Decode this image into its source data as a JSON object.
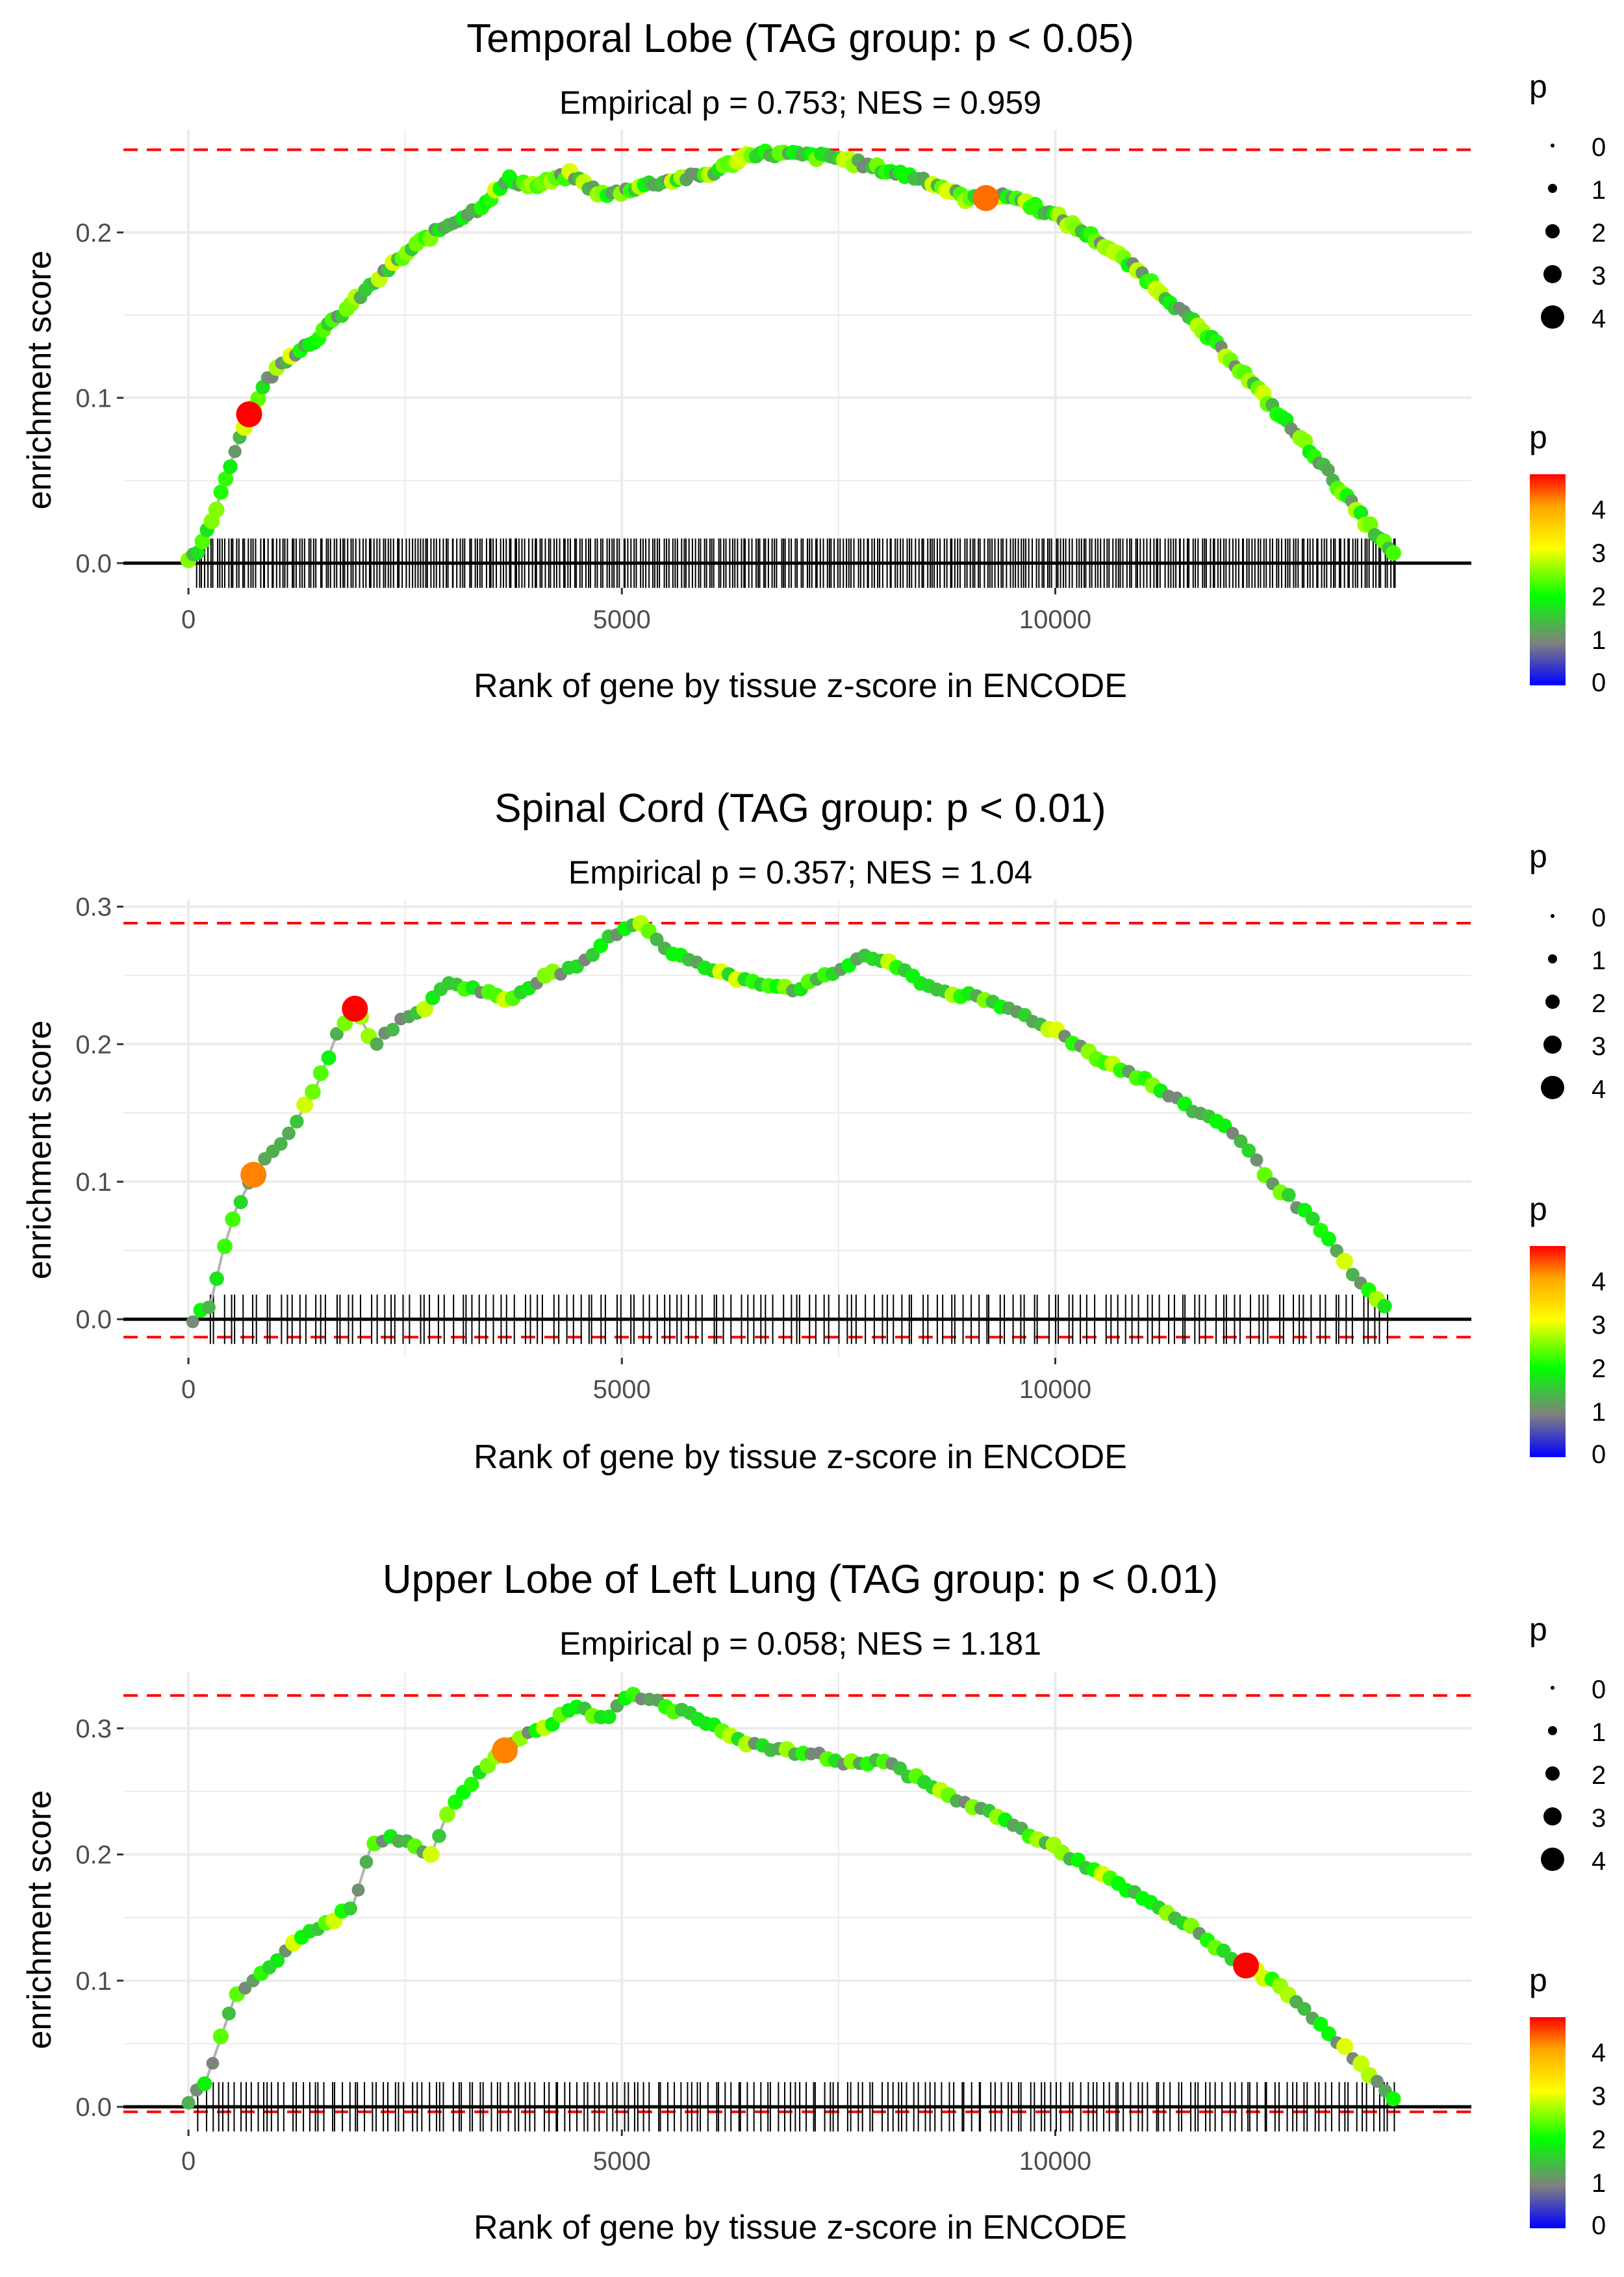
{
  "colors": {
    "grid": "#ebebeb",
    "threshold": "#ff0000",
    "baseline": "#000000",
    "path": "#b3b3b3",
    "gradient": [
      "#0000ff",
      "#808080",
      "#00ff00",
      "#ffff00",
      "#ff0000"
    ]
  },
  "chart_data": [
    {
      "type": "line",
      "title": "Temporal Lobe (TAG group: p < 0.05)",
      "subtitle": "Empirical p = 0.753; NES = 0.959",
      "xlabel": "Rank of gene by tissue z-score in ENCODE",
      "ylabel": "enrichment score",
      "xlim": [
        -750,
        14800
      ],
      "ylim": [
        -0.015,
        0.262
      ],
      "x_ticks": [
        0,
        5000,
        10000
      ],
      "x_tick_labels": [
        "0",
        "5000",
        "10000"
      ],
      "y_ticks": [
        0,
        0.1,
        0.2
      ],
      "y_tick_labels": [
        "0.0",
        "0.1",
        "0.2"
      ],
      "max_es": 0.25,
      "min_es": 0.0,
      "curve_x": [
        0,
        150,
        300,
        450,
        650,
        900,
        1150,
        1450,
        1750,
        2050,
        2350,
        2700,
        3000,
        3350,
        3700,
        4000,
        4400,
        4800,
        5200,
        5600,
        6000,
        6500,
        7000,
        7500,
        8000,
        8500,
        9000,
        9500,
        10000,
        10500,
        11000,
        11500,
        12000,
        12500,
        13000,
        13500,
        13900
      ],
      "curve_y": [
        0.0,
        0.01,
        0.03,
        0.055,
        0.085,
        0.11,
        0.125,
        0.135,
        0.15,
        0.165,
        0.18,
        0.195,
        0.205,
        0.215,
        0.232,
        0.228,
        0.235,
        0.222,
        0.228,
        0.232,
        0.235,
        0.248,
        0.247,
        0.245,
        0.238,
        0.232,
        0.22,
        0.222,
        0.21,
        0.195,
        0.175,
        0.15,
        0.125,
        0.095,
        0.065,
        0.03,
        0.005
      ],
      "legend_size_title": "p",
      "legend_size_labels": [
        "0",
        "1",
        "2",
        "3",
        "4"
      ],
      "legend_color_title": "p",
      "legend_color_labels": [
        "4",
        "3",
        "2",
        "1",
        "0"
      ],
      "gene_hits": {
        "start": 80,
        "end": 13950,
        "count": 420
      }
    },
    {
      "type": "line",
      "title": "Spinal Cord (TAG group: p < 0.01)",
      "subtitle": "Empirical p = 0.357; NES = 1.04",
      "xlabel": "Rank of gene by tissue z-score in ENCODE",
      "ylabel": "enrichment score",
      "xlim": [
        -750,
        14800
      ],
      "ylim": [
        -0.028,
        0.305
      ],
      "x_ticks": [
        0,
        5000,
        10000
      ],
      "x_tick_labels": [
        "0",
        "5000",
        "10000"
      ],
      "y_ticks": [
        0,
        0.1,
        0.2,
        0.3
      ],
      "y_tick_labels": [
        "0.0",
        "0.1",
        "0.2",
        "0.3"
      ],
      "max_es": 0.288,
      "min_es": -0.013,
      "curve_x": [
        50,
        250,
        400,
        550,
        750,
        950,
        1200,
        1450,
        1700,
        1900,
        2150,
        2400,
        2700,
        3000,
        3300,
        3700,
        4100,
        4500,
        4900,
        5200,
        5500,
        5800,
        6200,
        6600,
        7000,
        7400,
        7800,
        8200,
        8600,
        9000,
        9500,
        10000,
        10500,
        11000,
        11500,
        12000,
        12500,
        13000,
        13400,
        13800
      ],
      "curve_y": [
        0.0,
        0.01,
        0.05,
        0.08,
        0.105,
        0.12,
        0.14,
        0.165,
        0.205,
        0.228,
        0.2,
        0.215,
        0.225,
        0.245,
        0.24,
        0.232,
        0.25,
        0.255,
        0.28,
        0.29,
        0.27,
        0.26,
        0.25,
        0.245,
        0.24,
        0.25,
        0.265,
        0.255,
        0.24,
        0.235,
        0.225,
        0.21,
        0.19,
        0.175,
        0.155,
        0.14,
        0.1,
        0.07,
        0.035,
        0.008
      ],
      "legend_size_title": "p",
      "legend_size_labels": [
        "0",
        "1",
        "2",
        "3",
        "4"
      ],
      "legend_color_title": "p",
      "legend_color_labels": [
        "4",
        "3",
        "2",
        "1",
        "0"
      ],
      "gene_hits": {
        "start": 200,
        "end": 13900,
        "count": 170
      }
    },
    {
      "type": "line",
      "title": "Upper Lobe of Left Lung (TAG group: p < 0.01)",
      "subtitle": "Empirical p = 0.058; NES = 1.181",
      "xlabel": "Rank of gene by tissue z-score in ENCODE",
      "ylabel": "enrichment score",
      "xlim": [
        -750,
        14800
      ],
      "ylim": [
        -0.018,
        0.345
      ],
      "x_ticks": [
        0,
        5000,
        10000
      ],
      "x_tick_labels": [
        "0",
        "5000",
        "10000"
      ],
      "y_ticks": [
        0,
        0.1,
        0.2,
        0.3
      ],
      "y_tick_labels": [
        "0.0",
        "0.1",
        "0.2",
        "0.3"
      ],
      "max_es": 0.326,
      "min_es": -0.004,
      "curve_x": [
        0,
        200,
        400,
        550,
        750,
        1000,
        1300,
        1600,
        1900,
        2100,
        2300,
        2550,
        2800,
        3000,
        3300,
        3600,
        3900,
        4200,
        4500,
        4800,
        5000,
        5300,
        5600,
        6000,
        6400,
        6800,
        7200,
        7600,
        8000,
        8400,
        8800,
        9200,
        9600,
        10000,
        10500,
        11000,
        11500,
        12000,
        12500,
        13000,
        13500,
        13900
      ],
      "curve_y": [
        0.005,
        0.02,
        0.06,
        0.09,
        0.1,
        0.115,
        0.135,
        0.145,
        0.16,
        0.205,
        0.215,
        0.21,
        0.2,
        0.235,
        0.26,
        0.28,
        0.295,
        0.305,
        0.32,
        0.305,
        0.325,
        0.325,
        0.315,
        0.305,
        0.29,
        0.282,
        0.28,
        0.272,
        0.275,
        0.26,
        0.245,
        0.235,
        0.22,
        0.205,
        0.185,
        0.165,
        0.145,
        0.12,
        0.1,
        0.07,
        0.035,
        0.005
      ],
      "legend_size_title": "p",
      "legend_size_labels": [
        "0",
        "1",
        "2",
        "3",
        "4"
      ],
      "legend_color_title": "p",
      "legend_color_labels": [
        "4",
        "3",
        "2",
        "1",
        "0"
      ],
      "gene_hits": {
        "start": 100,
        "end": 13950,
        "count": 210
      }
    }
  ]
}
